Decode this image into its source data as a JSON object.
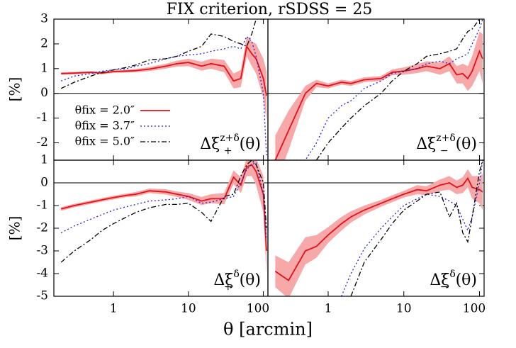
{
  "title": "FIX criterion, rSDSS = 25",
  "xlabel": "θ [arcmin]",
  "ylabel": "[%]",
  "chart_data": [
    {
      "type": "line",
      "log_x": true,
      "xlim": [
        0.16,
        115
      ],
      "ylim": [
        -2.7,
        3
      ],
      "xticks": [
        1,
        10,
        100
      ],
      "yticks": [
        3,
        2,
        1,
        0,
        -1,
        -2
      ],
      "legend": "lower left",
      "label": {
        "base": "Δξ",
        "sub": "+",
        "sup": "z+δ",
        "arg": "(θ)"
      },
      "x": [
        0.2,
        0.3,
        0.5,
        0.7,
        1,
        1.5,
        2,
        3,
        5,
        7,
        10,
        15,
        20,
        30,
        40,
        50,
        60,
        70,
        80,
        100,
        110
      ],
      "series": [
        {
          "name": "θfix = 2.0″",
          "color": "#e3101a",
          "dash": "solid",
          "band_color": "#f7a8a8",
          "values": [
            0.8,
            0.82,
            0.85,
            0.82,
            0.88,
            0.9,
            0.92,
            0.98,
            1.1,
            1.2,
            1.25,
            1.1,
            1.2,
            1.1,
            0.5,
            0.6,
            1.9,
            1.6,
            1.4,
            0.6,
            -0.1
          ],
          "errors": [
            0.05,
            0.05,
            0.05,
            0.05,
            0.05,
            0.06,
            0.07,
            0.08,
            0.1,
            0.12,
            0.15,
            0.18,
            0.2,
            0.25,
            0.3,
            0.35,
            0.4,
            0.5,
            0.6,
            0.8,
            1.0
          ]
        },
        {
          "name": "θfix = 3.7″",
          "color": "#2020d8",
          "dash": "dotted",
          "values": [
            0.5,
            0.7,
            0.8,
            0.9,
            0.95,
            1.0,
            1.1,
            1.2,
            1.4,
            1.5,
            1.55,
            1.6,
            1.7,
            1.8,
            1.9,
            1.8,
            2.3,
            2.1,
            1.5,
            0,
            -2.5
          ]
        },
        {
          "name": "θfix = 5.0″",
          "color": "#000000",
          "dash": "dashdot",
          "values": [
            0.2,
            0.45,
            0.7,
            0.85,
            0.95,
            1.05,
            1.15,
            1.35,
            1.4,
            1.5,
            1.7,
            1.9,
            2.4,
            2.3,
            2.1,
            2.0,
            1.9,
            2.4,
            3,
            3,
            3
          ]
        }
      ]
    },
    {
      "type": "line",
      "log_x": true,
      "xlim": [
        0.16,
        115
      ],
      "ylim": [
        -2.7,
        3
      ],
      "xticks": [
        1,
        10,
        100
      ],
      "label": {
        "base": "Δξ",
        "sub": "−",
        "sup": "z+δ",
        "arg": "(θ)"
      },
      "x": [
        0.2,
        0.3,
        0.5,
        0.7,
        1,
        1.5,
        2,
        3,
        5,
        7,
        10,
        15,
        20,
        30,
        40,
        50,
        60,
        70,
        80,
        100,
        110
      ],
      "series": [
        {
          "name": "θfix = 2.0″",
          "color": "#e3101a",
          "dash": "solid",
          "band_color": "#f7a8a8",
          "values": [
            -2.7,
            -1.5,
            0.0,
            0.4,
            0.3,
            0.45,
            0.4,
            0.55,
            0.6,
            0.85,
            0.9,
            1.0,
            1.1,
            1.0,
            1.2,
            0.75,
            0.8,
            0.6,
            0.9,
            1.7,
            1.4
          ],
          "errors": [
            1.0,
            0.8,
            0.3,
            0.15,
            0.1,
            0.1,
            0.1,
            0.1,
            0.1,
            0.12,
            0.15,
            0.18,
            0.2,
            0.25,
            0.3,
            0.35,
            0.4,
            0.5,
            0.6,
            0.8,
            1.0
          ]
        },
        {
          "name": "θfix = 3.7″",
          "color": "#2020d8",
          "dash": "dotted",
          "values": [
            -2.7,
            -2.7,
            -2.7,
            -2.0,
            -1.0,
            -0.5,
            -0.3,
            0.2,
            0.5,
            0.8,
            0.9,
            1.0,
            1.2,
            1.3,
            1.2,
            1.4,
            1.5,
            1.6,
            2.0,
            2.6,
            3
          ]
        },
        {
          "name": "θfix = 5.0″",
          "color": "#000000",
          "dash": "dashdot",
          "values": [
            null,
            null,
            null,
            -2.7,
            -2.0,
            -1.4,
            -1.0,
            -0.5,
            0,
            0.5,
            0.9,
            1.2,
            1.5,
            1.6,
            1.7,
            1.8,
            2.2,
            2.5,
            2.6,
            3,
            3
          ]
        }
      ]
    },
    {
      "type": "line",
      "log_x": true,
      "xlim": [
        0.16,
        115
      ],
      "ylim": [
        -5,
        1
      ],
      "xticks": [
        1,
        10,
        100
      ],
      "yticks": [
        1,
        0,
        -1,
        -2,
        -3,
        -4,
        -5
      ],
      "label": {
        "base": "Δξ",
        "sub": "+",
        "sup": "δ",
        "arg": "(θ)"
      },
      "x": [
        0.2,
        0.3,
        0.5,
        0.7,
        1,
        1.5,
        2,
        3,
        5,
        7,
        10,
        15,
        20,
        30,
        40,
        50,
        60,
        70,
        80,
        100,
        110
      ],
      "series": [
        {
          "name": "θfix = 2.0″",
          "color": "#e3101a",
          "dash": "solid",
          "band_color": "#f7a8a8",
          "values": [
            -1.15,
            -1.0,
            -0.85,
            -0.75,
            -0.65,
            -0.55,
            -0.5,
            -0.35,
            -0.4,
            -0.5,
            -0.6,
            -0.8,
            -0.7,
            -0.7,
            0.25,
            -0.1,
            0.7,
            0.8,
            0.5,
            -0.5,
            -3
          ],
          "errors": [
            0.08,
            0.08,
            0.08,
            0.08,
            0.08,
            0.08,
            0.1,
            0.1,
            0.12,
            0.12,
            0.15,
            0.18,
            0.2,
            0.25,
            0.3,
            0.35,
            0.4,
            0.5,
            0.6,
            0.8,
            1.0
          ]
        },
        {
          "name": "θfix = 3.7″",
          "color": "#2020d8",
          "dash": "dotted",
          "values": [
            -2.2,
            -1.9,
            -1.6,
            -1.4,
            -1.2,
            -1.05,
            -0.95,
            -0.8,
            -0.75,
            -0.7,
            -0.6,
            -0.9,
            -0.85,
            -0.7,
            -0.6,
            0,
            0.6,
            0.8,
            0.9,
            -0.5,
            -2.5
          ]
        },
        {
          "name": "θfix = 5.0″",
          "color": "#000000",
          "dash": "dashdot",
          "values": [
            -3.5,
            -3.0,
            -2.5,
            -2.1,
            -1.8,
            -1.5,
            -1.3,
            -1.1,
            -0.95,
            -0.95,
            -0.9,
            -1.3,
            -1.7,
            -0.6,
            -0.5,
            0.3,
            0.8,
            1,
            0.8,
            0,
            -2
          ]
        }
      ]
    },
    {
      "type": "line",
      "log_x": true,
      "xlim": [
        0.16,
        115
      ],
      "ylim": [
        -5,
        1
      ],
      "xticks": [
        1,
        10,
        100
      ],
      "label": {
        "base": "Δξ",
        "sub": "−",
        "sup": "δ",
        "arg": "(θ)"
      },
      "x": [
        0.2,
        0.3,
        0.5,
        0.7,
        1,
        1.5,
        2,
        3,
        5,
        7,
        10,
        15,
        20,
        30,
        40,
        50,
        60,
        70,
        80,
        100,
        110
      ],
      "series": [
        {
          "name": "θfix = 2.0″",
          "color": "#e3101a",
          "dash": "solid",
          "band_color": "#f7a8a8",
          "values": [
            -3.9,
            -4.3,
            -3.0,
            -2.8,
            -2.3,
            -1.8,
            -1.5,
            -1.2,
            -0.9,
            -0.7,
            -0.5,
            -0.3,
            -0.35,
            -0.1,
            0,
            -0.2,
            -0.1,
            0.2,
            -0.2,
            -0.3,
            -0.4
          ],
          "errors": [
            0.7,
            0.8,
            0.6,
            0.5,
            0.35,
            0.3,
            0.25,
            0.2,
            0.15,
            0.15,
            0.15,
            0.2,
            0.2,
            0.25,
            0.3,
            0.3,
            0.35,
            0.4,
            0.5,
            0.6,
            0.8
          ]
        },
        {
          "name": "θfix = 3.7″",
          "color": "#2020d8",
          "dash": "dotted",
          "values": [
            null,
            null,
            null,
            null,
            null,
            -5,
            -4,
            -2.9,
            -2.0,
            -1.5,
            -1.0,
            -0.7,
            -0.5,
            -0.6,
            -0.8,
            -1.0,
            -1.6,
            -2.1,
            -1.5,
            0,
            1
          ]
        },
        {
          "name": "θfix = 5.0″",
          "color": "#000000",
          "dash": "dashdot",
          "values": [
            null,
            null,
            null,
            null,
            null,
            null,
            -5,
            -3.5,
            -2.5,
            -1.8,
            -1.2,
            -0.8,
            -0.5,
            -0.4,
            -1.5,
            -0.9,
            -2.2,
            -2.6,
            -1.5,
            0.5,
            1
          ]
        }
      ]
    }
  ]
}
